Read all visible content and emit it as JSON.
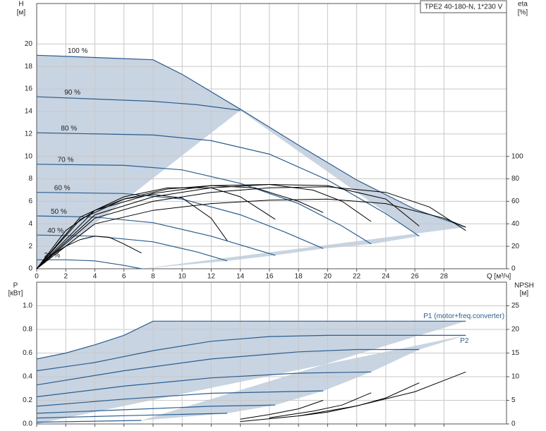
{
  "chart_data": [
    {
      "type": "line",
      "title": "TPE2 40-180-N, 1*230 V",
      "x_label": "Q [м³/ч]",
      "y_label": "H",
      "y_unit": "[м]",
      "y2_label": "eta",
      "y2_unit": "[%]",
      "xlim": [
        0,
        32.3
      ],
      "xticks": [
        0,
        2,
        4,
        6,
        8,
        10,
        12,
        14,
        16,
        18,
        20,
        22,
        24,
        26,
        28
      ],
      "ylim": [
        0,
        23.6
      ],
      "yticks": [
        0,
        2,
        4,
        6,
        8,
        10,
        12,
        14,
        16,
        18,
        20
      ],
      "y2lim": [
        0,
        236
      ],
      "y2ticks": [
        0,
        20,
        40,
        60,
        80,
        100
      ],
      "grid": true,
      "area_color": "#c8d4e2",
      "series_label_position": "start",
      "series": [
        {
          "name": "100 %",
          "color": "#2b5d8f",
          "x": [
            0,
            2,
            4,
            6,
            8,
            10,
            14,
            18,
            22,
            26,
            29.5
          ],
          "values": [
            19,
            18.9,
            18.8,
            18.7,
            18.6,
            17.3,
            14.2,
            11,
            7.9,
            5.3,
            3.7
          ]
        },
        {
          "name": "90 %",
          "color": "#2b5d8f",
          "x": [
            0,
            4,
            8,
            11,
            14
          ],
          "values": [
            15.3,
            15.1,
            14.9,
            14.6,
            14.1
          ]
        },
        {
          "name": "80 %",
          "color": "#2b5d8f",
          "x": [
            0,
            8,
            12,
            16,
            20,
            24,
            26.3
          ],
          "values": [
            12.1,
            11.9,
            11.4,
            10.2,
            7.9,
            4.9,
            2.9
          ]
        },
        {
          "name": "70 %",
          "color": "#2b5d8f",
          "x": [
            0,
            6,
            10,
            14,
            18,
            21,
            23
          ],
          "values": [
            9.3,
            9.2,
            8.8,
            7.6,
            5.8,
            3.8,
            2.2
          ]
        },
        {
          "name": "60 %",
          "color": "#2b5d8f",
          "x": [
            0,
            6,
            10,
            14,
            17,
            19.7
          ],
          "values": [
            6.8,
            6.7,
            6.2,
            4.8,
            3.3,
            1.8
          ]
        },
        {
          "name": "50 %",
          "color": "#2b5d8f",
          "x": [
            0,
            4,
            8,
            12,
            16.4
          ],
          "values": [
            4.7,
            4.6,
            4.1,
            2.9,
            1.2
          ]
        },
        {
          "name": "40 %",
          "color": "#2b5d8f",
          "x": [
            0,
            4,
            8,
            11,
            13.1
          ],
          "values": [
            3.0,
            2.9,
            2.4,
            1.5,
            0.7
          ]
        },
        {
          "name": "21 %",
          "color": "#2b5d8f",
          "x": [
            0,
            2,
            4,
            6,
            7.2
          ],
          "values": [
            0.8,
            0.8,
            0.7,
            0.3,
            0
          ]
        },
        {
          "axis": "y2",
          "color": "#000000",
          "x": [
            0,
            4,
            8,
            12,
            16,
            20,
            24,
            28,
            29.5
          ],
          "values": [
            0,
            40,
            52,
            58,
            61,
            62,
            58,
            45,
            37
          ]
        },
        {
          "axis": "y2",
          "color": "#000000",
          "x": [
            0,
            4,
            8,
            12,
            16,
            20,
            24,
            27,
            29.5
          ],
          "values": [
            0,
            45,
            60,
            68,
            72,
            73,
            68,
            55,
            34
          ]
        },
        {
          "axis": "y2",
          "color": "#000000",
          "x": [
            0,
            4,
            8,
            12,
            16,
            20,
            24,
            26.3
          ],
          "values": [
            0,
            48,
            64,
            72,
            75,
            74,
            62,
            38
          ]
        },
        {
          "axis": "y2",
          "color": "#000000",
          "x": [
            0,
            4,
            8,
            12,
            16,
            19,
            21,
            23
          ],
          "values": [
            0,
            52,
            67,
            74,
            75,
            70,
            60,
            42
          ]
        },
        {
          "axis": "y2",
          "color": "#000000",
          "x": [
            0,
            3,
            6,
            9,
            12,
            15,
            18,
            19.7
          ],
          "values": [
            0,
            44,
            62,
            71,
            74,
            72,
            60,
            50
          ]
        },
        {
          "axis": "y2",
          "color": "#000000",
          "x": [
            0,
            3,
            6,
            9,
            12,
            14,
            16.4
          ],
          "values": [
            0,
            46,
            64,
            72,
            72,
            64,
            44
          ]
        },
        {
          "axis": "y2",
          "color": "#000000",
          "x": [
            0,
            2,
            4,
            6,
            8,
            10,
            12,
            13.1
          ],
          "values": [
            0,
            34,
            52,
            62,
            66,
            63,
            45,
            25
          ]
        },
        {
          "axis": "y2",
          "color": "#000000",
          "x": [
            0,
            1,
            2,
            3,
            4,
            5,
            6,
            7.2
          ],
          "values": [
            0,
            12,
            20,
            26,
            29,
            28,
            22,
            14
          ]
        }
      ]
    },
    {
      "type": "line",
      "y_label": "P",
      "y_unit": "[кВт]",
      "y2_label": "NPSH",
      "y2_unit": "[м]",
      "xlim": [
        0,
        32.3
      ],
      "ylim": [
        0,
        1.2
      ],
      "yticks": [
        {
          "value": 0,
          "label": "0.0"
        },
        0.2,
        0.4,
        0.6,
        0.8,
        {
          "value": 1,
          "label": "1.0"
        }
      ],
      "y2lim": [
        0,
        30
      ],
      "y2ticks": [
        0,
        5,
        10,
        15,
        20,
        25
      ],
      "grid": true,
      "area_color": "#c8d4e2",
      "series_label_position": "end",
      "series": [
        {
          "name": "P1 (motor+freq.converter)",
          "color": "#2b5d8f",
          "x": [
            0,
            2,
            4,
            6,
            8,
            14,
            29.5
          ],
          "values": [
            0.55,
            0.6,
            0.67,
            0.75,
            0.87,
            0.87,
            0.87
          ]
        },
        {
          "name": "P2",
          "color": "#2b5d8f",
          "x": [
            0,
            4,
            8,
            12,
            16,
            20,
            29.5
          ],
          "values": [
            0.45,
            0.52,
            0.62,
            0.7,
            0.74,
            0.75,
            0.75
          ]
        },
        {
          "color": "#2b5d8f",
          "x": [
            0,
            6,
            12,
            18,
            22,
            26.3
          ],
          "values": [
            0.33,
            0.45,
            0.55,
            0.61,
            0.63,
            0.63
          ]
        },
        {
          "color": "#2b5d8f",
          "x": [
            0,
            6,
            12,
            18,
            23
          ],
          "values": [
            0.23,
            0.32,
            0.39,
            0.43,
            0.44
          ]
        },
        {
          "color": "#2b5d8f",
          "x": [
            0,
            6,
            12,
            19.7
          ],
          "values": [
            0.15,
            0.21,
            0.26,
            0.28
          ]
        },
        {
          "color": "#2b5d8f",
          "x": [
            0,
            6,
            12,
            16.4
          ],
          "values": [
            0.09,
            0.12,
            0.15,
            0.16
          ]
        },
        {
          "color": "#2b5d8f",
          "x": [
            0,
            6,
            13.1
          ],
          "values": [
            0.05,
            0.07,
            0.09
          ]
        },
        {
          "color": "#2b5d8f",
          "x": [
            0,
            7.2
          ],
          "values": [
            0.015,
            0.03
          ]
        },
        {
          "axis": "y2",
          "color": "#000000",
          "x": [
            14,
            18,
            22,
            26,
            29.5
          ],
          "values": [
            0.5,
            1.7,
            3.8,
            6.8,
            11
          ]
        },
        {
          "axis": "y2",
          "color": "#000000",
          "x": [
            18,
            20,
            22,
            24,
            26.3
          ],
          "values": [
            1.7,
            2.5,
            3.8,
            5.5,
            8.7
          ]
        },
        {
          "axis": "y2",
          "color": "#000000",
          "x": [
            16,
            19,
            21,
            23
          ],
          "values": [
            1.3,
            2.7,
            4,
            6.6
          ]
        },
        {
          "axis": "y2",
          "color": "#000000",
          "x": [
            14,
            16,
            18,
            19.7
          ],
          "values": [
            1,
            2,
            3.2,
            5
          ]
        }
      ]
    }
  ]
}
